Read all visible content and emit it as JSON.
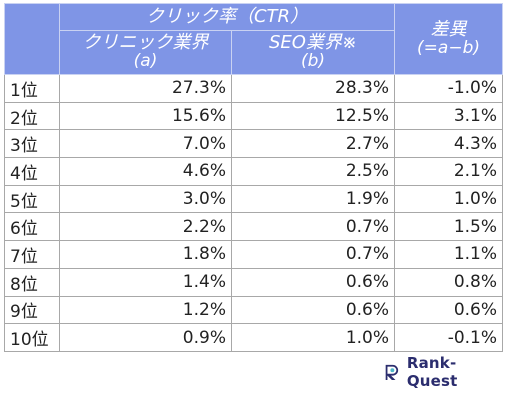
{
  "table": {
    "headers": {
      "ctr": "クリック率（CTR）",
      "clinic": "クリニック業界",
      "clinic_sub": "(a)",
      "seo": "SEO業界※",
      "seo_sub": "(b)",
      "diff": "差異",
      "diff_sub": "(=a−b)"
    },
    "rows": [
      {
        "rank": "1位",
        "a": "27.3%",
        "b": "28.3%",
        "diff": "-1.0%"
      },
      {
        "rank": "2位",
        "a": "15.6%",
        "b": "12.5%",
        "diff": "3.1%"
      },
      {
        "rank": "3位",
        "a": "7.0%",
        "b": "2.7%",
        "diff": "4.3%"
      },
      {
        "rank": "4位",
        "a": "4.6%",
        "b": "2.5%",
        "diff": "2.1%"
      },
      {
        "rank": "5位",
        "a": "3.0%",
        "b": "1.9%",
        "diff": "1.0%"
      },
      {
        "rank": "6位",
        "a": "2.2%",
        "b": "0.7%",
        "diff": "1.5%"
      },
      {
        "rank": "7位",
        "a": "1.8%",
        "b": "0.7%",
        "diff": "1.1%"
      },
      {
        "rank": "8位",
        "a": "1.4%",
        "b": "0.6%",
        "diff": "0.8%"
      },
      {
        "rank": "9位",
        "a": "1.2%",
        "b": "0.6%",
        "diff": "0.6%"
      },
      {
        "rank": "10位",
        "a": "0.9%",
        "b": "1.0%",
        "diff": "-0.1%"
      }
    ]
  },
  "brand": {
    "name": "Rank-Quest",
    "icon": "rank-quest-logo-icon",
    "color": "#2b2d6e"
  },
  "colors": {
    "header_bg": "#7f95e6",
    "header_text": "#ffffff",
    "grid": "#a8a8a8"
  }
}
